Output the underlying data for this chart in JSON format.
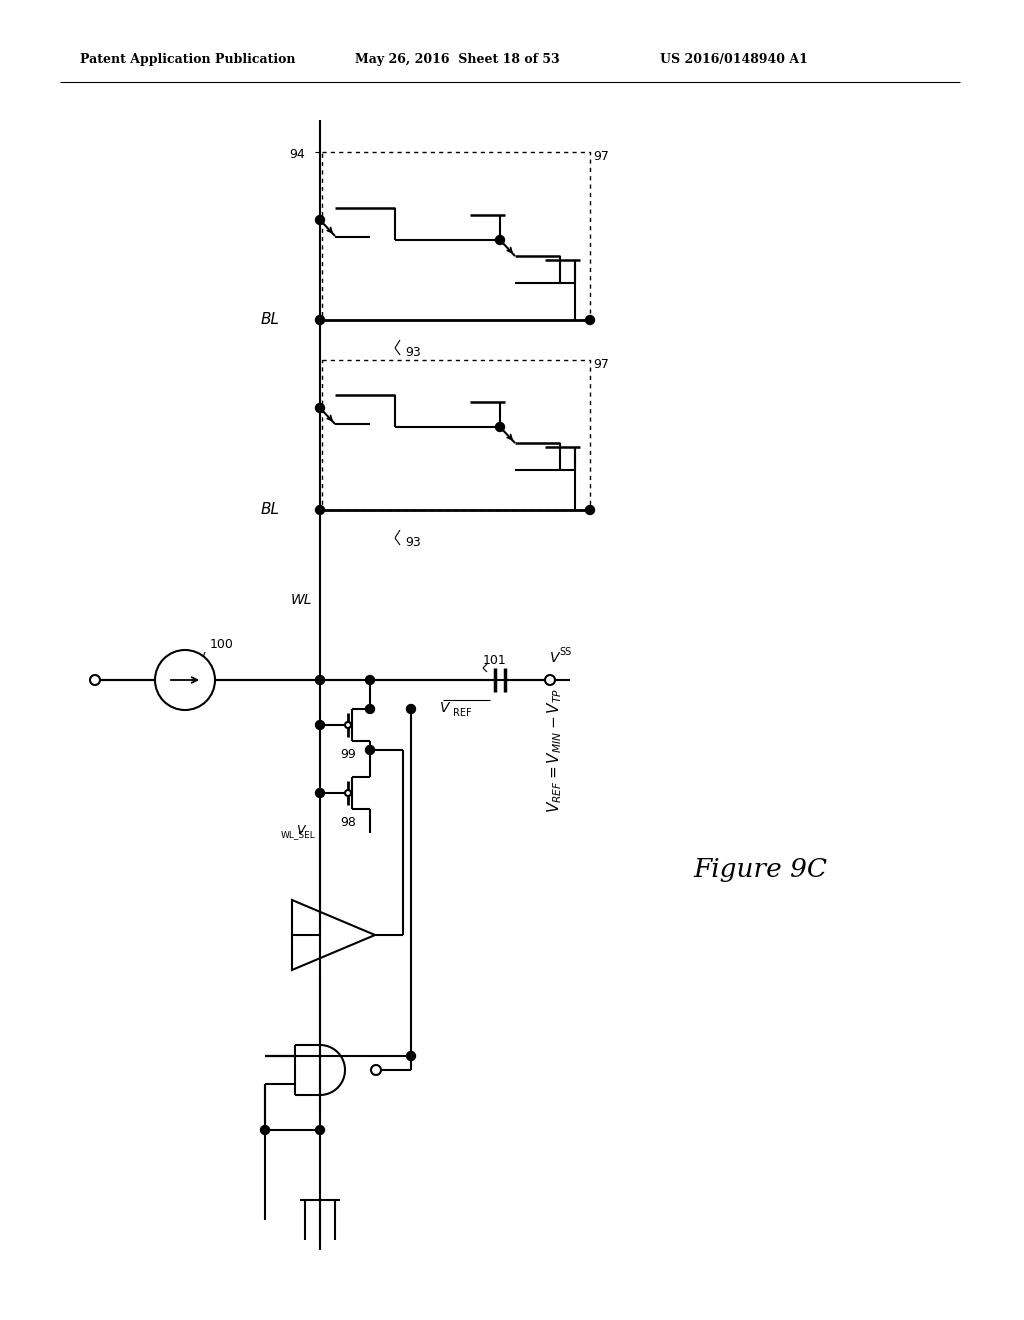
{
  "header_left": "Patent Application Publication",
  "header_mid": "May 26, 2016  Sheet 18 of 53",
  "header_right": "US 2016/0148940 A1",
  "figure_label": "Figure 9C",
  "bg_color": "#ffffff",
  "line_color": "#000000"
}
